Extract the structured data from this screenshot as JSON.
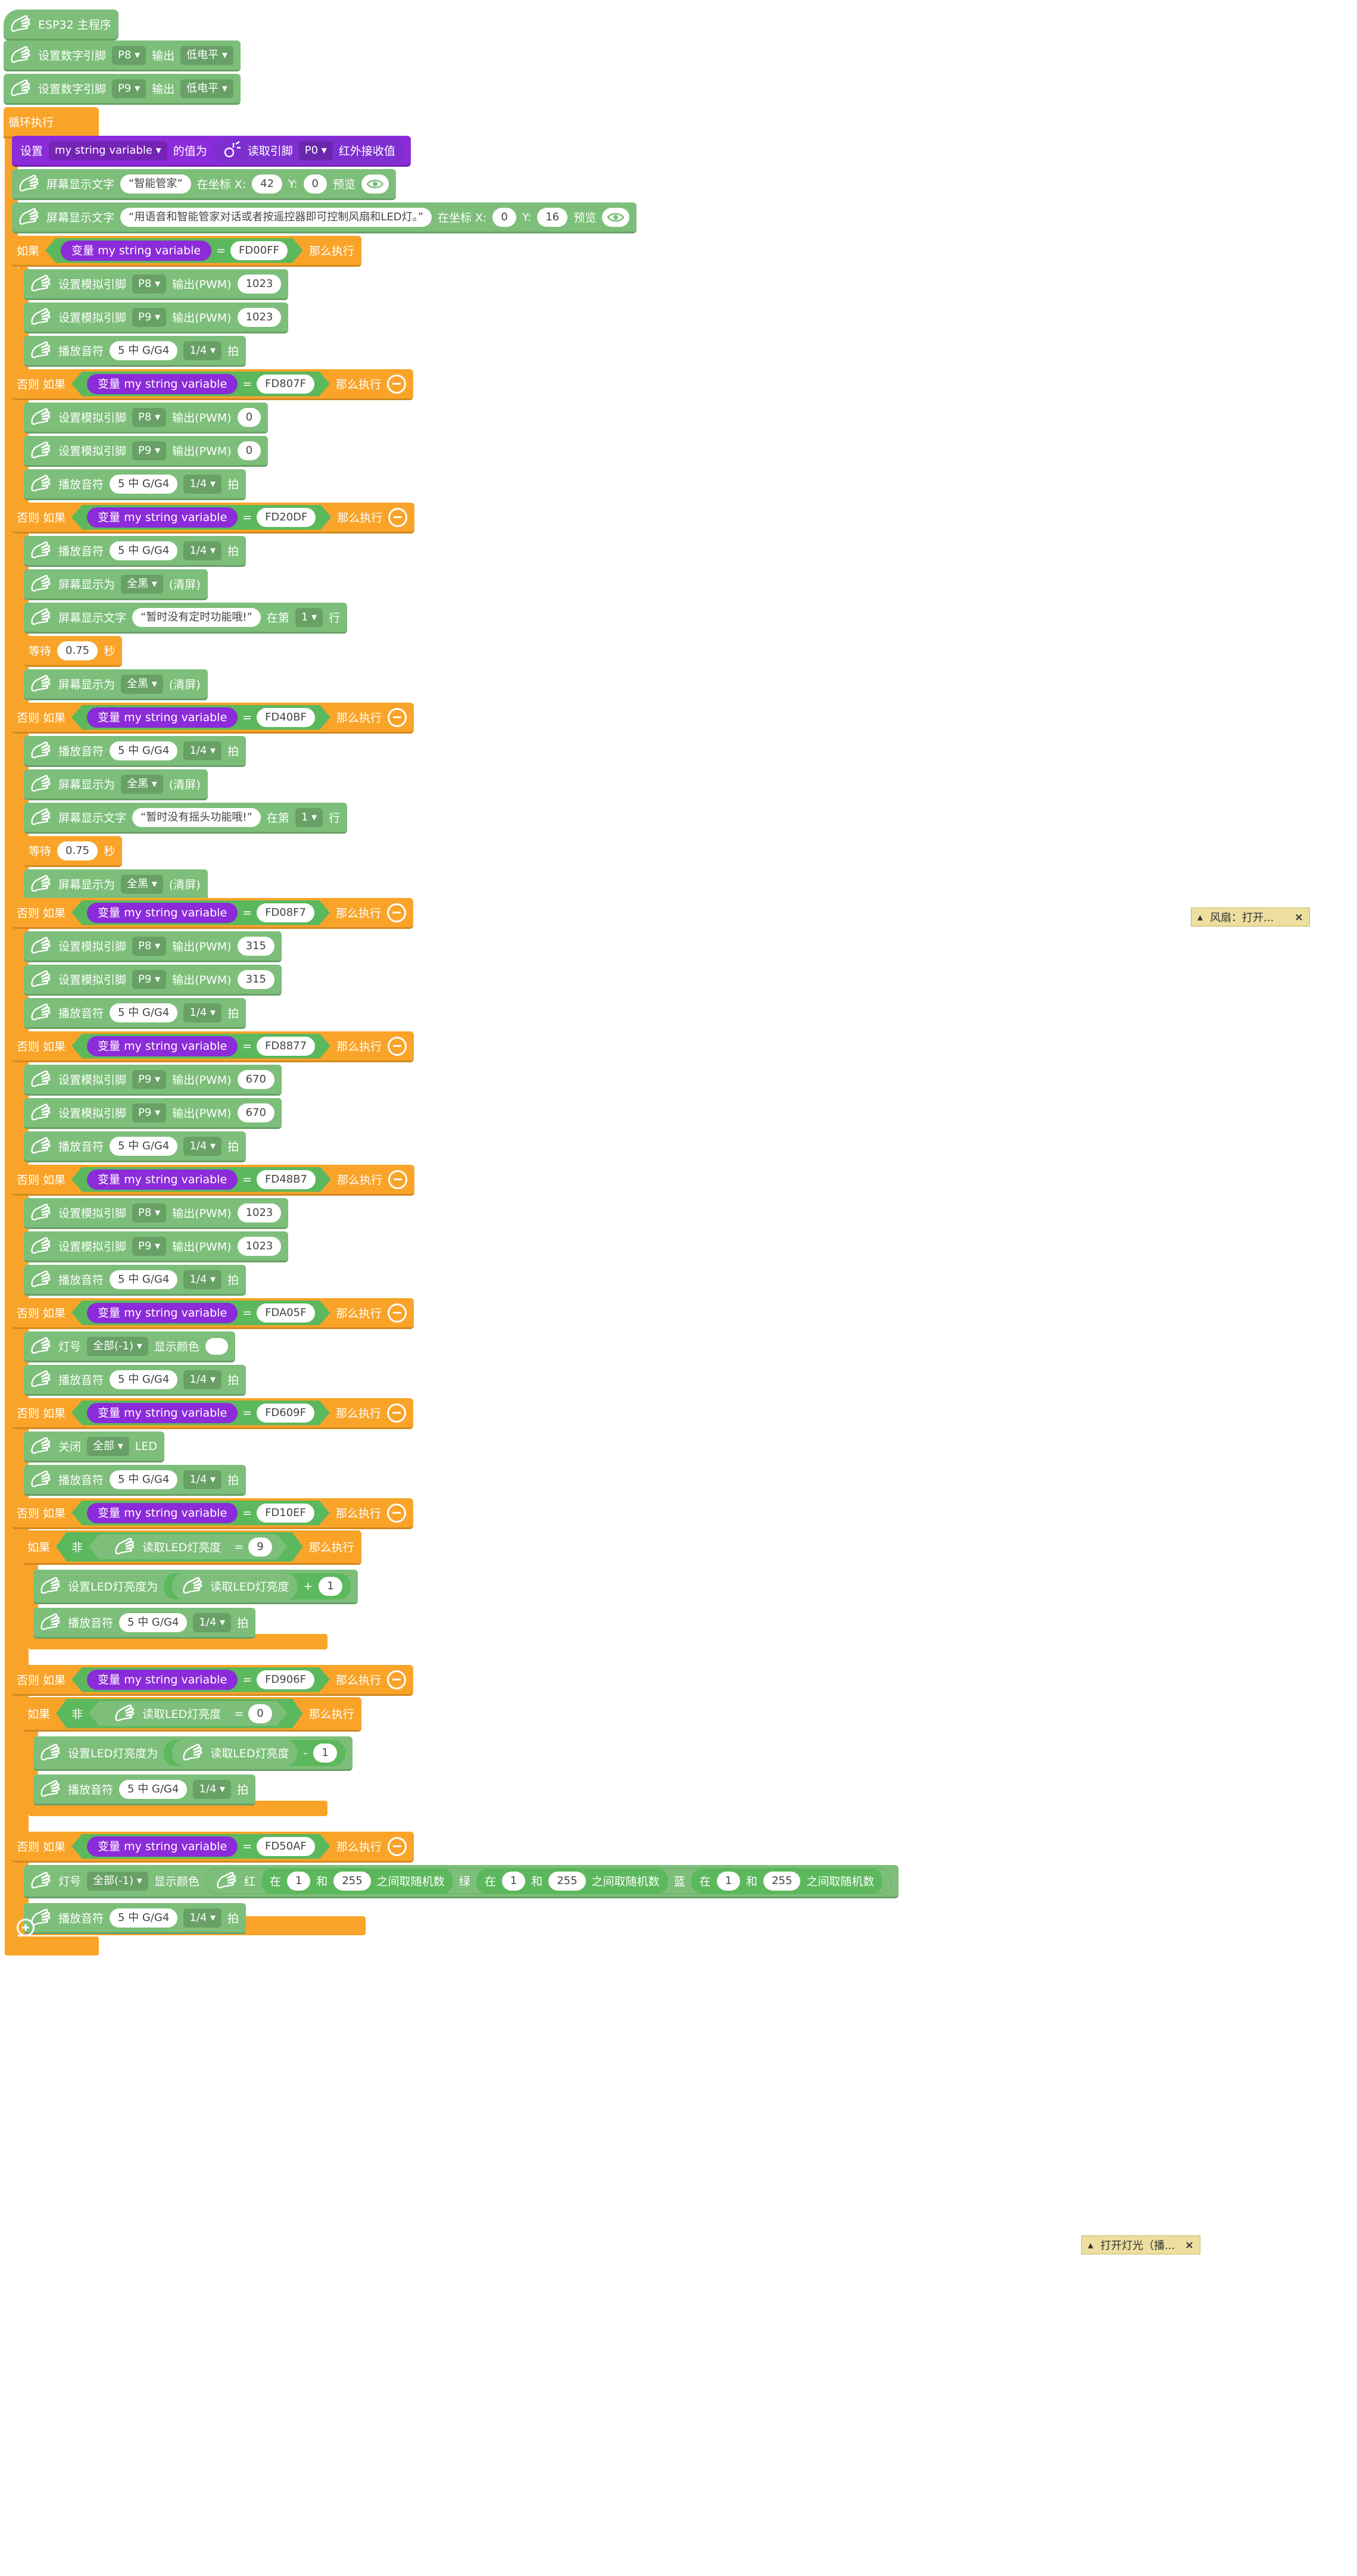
{
  "tokens": {
    "main_program": "ESP32 主程序",
    "set_digital_pin": "设置数字引脚",
    "output": "输出",
    "low_level": "低电平",
    "loop": "循环执行",
    "set": "设置",
    "var_name": "my string variable",
    "value_to": "的值为",
    "read_pin": "读取引脚",
    "ir_recv": "红外接收值",
    "screen_text": "屏幕显示文字",
    "at_x": "在坐标 X:",
    "y": "Y:",
    "preview": "预览",
    "if": "如果",
    "var_label": "变量",
    "then": "那么执行",
    "else_if": "否则 如果",
    "set_analog_pin": "设置模拟引脚",
    "output_pwm": "输出(PWM)",
    "play_note": "播放音符",
    "beat": "拍",
    "screen_show": "屏幕显示为",
    "all_black": "全黑",
    "clear": "(清屏)",
    "at_line": "在第",
    "line": "行",
    "wait": "等待",
    "sec": "秒",
    "led_num": "灯号",
    "all_minus1": "全部(-1)",
    "show_color": "显示颜色",
    "close": "关闭",
    "all": "全部",
    "led": "LED",
    "not": "非",
    "read_led_brightness": "读取LED灯亮度",
    "set_led_brightness_to": "设置LED灯亮度为",
    "red": "红",
    "green": "绿",
    "blue": "蓝",
    "between": "在",
    "and": "和",
    "random_int": "之间取随机数",
    "pin_p8": "P8",
    "pin_p9": "P9",
    "pin_p0": "P0",
    "note_value": "5 中 G/G4",
    "beat_value": "1/4",
    "eq": "=",
    "plus": "+",
    "minus_sign": "-",
    "dropdown_arrow": "▾"
  },
  "values": {
    "t1": "“智能管家”",
    "x42": "42",
    "y0": "0",
    "t2": "“用语音和智能管家对话或者按遥控器即可控制风扇和LED灯。”",
    "x0": "0",
    "y16": "16",
    "fd00ff": "FD00FF",
    "v1023": "1023",
    "fd807f": "FD807F",
    "v0": "0",
    "fd20df": "FD20DF",
    "t3": "“暂时没有定时功能哦!”",
    "line1": "1",
    "w075": "0.75",
    "fd40bf": "FD40BF",
    "t4": "“暂时没有摇头功能哦!”",
    "fd08f7": "FD08F7",
    "v315": "315",
    "fd8877": "FD8877",
    "v670": "670",
    "fd48b7": "FD48B7",
    "fda05f": "FDA05F",
    "fd609f": "FD609F",
    "fd10ef": "FD10EF",
    "n9": "9",
    "n1": "1",
    "fd906f": "FD906F",
    "n0": "0",
    "fd50af": "FD50AF",
    "r1": "1",
    "r255": "255"
  },
  "comments": {
    "c1": "风扇：打开...",
    "c2": "打开灯光（播..."
  },
  "colors": {
    "motion": "#7dbf7a",
    "control": "#f9a429",
    "variable": "#8c2bd9",
    "operator": "#5cb85c",
    "comment": "#ecdfa0"
  },
  "icons": [
    "glove-icon",
    "light-sensor-icon",
    "eye-icon",
    "minus-circle-icon",
    "add-circle-icon",
    "close-icon",
    "chevron-up-icon"
  ]
}
